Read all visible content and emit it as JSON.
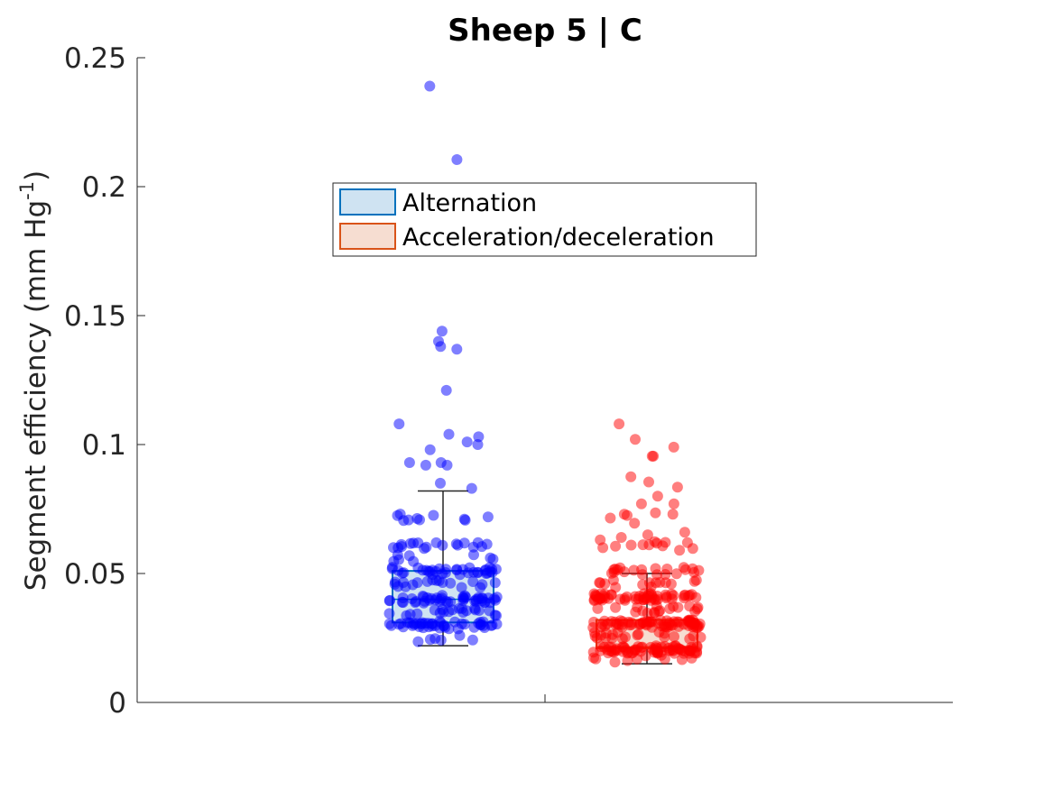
{
  "chart_data": {
    "type": "boxplot_with_jittered_points",
    "title": "Sheep 5 | C",
    "ylabel": {
      "main": "Segment efficiency (mm Hg",
      "superscript": "-1",
      "close": ")"
    },
    "xlabel": "",
    "ylim": [
      0,
      0.25
    ],
    "yticks": [
      0,
      0.05,
      0.1,
      0.15,
      0.2,
      0.25
    ],
    "ytick_labels": [
      "0",
      "0.05",
      "0.1",
      "0.15",
      "0.2",
      "0.25"
    ],
    "legend": {
      "position": "upper-center",
      "entries": [
        "Alternation",
        "Acceleration/deceleration"
      ]
    },
    "series": [
      {
        "name": "Alternation",
        "point_color": "#0000ff",
        "box_edge_color": "#0072bd",
        "box_fill_color": "#cfe3f2",
        "box": {
          "whisker_low": 0.022,
          "q1": 0.031,
          "median": 0.04,
          "q3": 0.051,
          "whisker_high": 0.082
        },
        "outliers": [
          0.239,
          0.2105,
          0.144,
          0.14,
          0.138,
          0.137,
          0.121,
          0.108,
          0.104,
          0.103,
          0.101,
          0.1,
          0.098,
          0.093,
          0.093,
          0.092,
          0.092,
          0.085,
          0.083
        ]
      },
      {
        "name": "Acceleration/deceleration",
        "point_color": "#ff0000",
        "box_edge_color": "#d95319",
        "box_fill_color": "#f6ddd1",
        "box": {
          "whisker_low": 0.015,
          "q1": 0.021,
          "median": 0.0215,
          "q3": 0.032,
          "whisker_high": 0.05
        },
        "outliers": [
          0.108,
          0.102,
          0.099,
          0.0955,
          0.0955,
          0.0875,
          0.0855,
          0.0835,
          0.08,
          0.077,
          0.077,
          0.0735,
          0.073,
          0.073,
          0.0725,
          0.0715,
          0.0695,
          0.066,
          0.065,
          0.064,
          0.063,
          0.062,
          0.061,
          0.06,
          0.059
        ]
      }
    ]
  }
}
